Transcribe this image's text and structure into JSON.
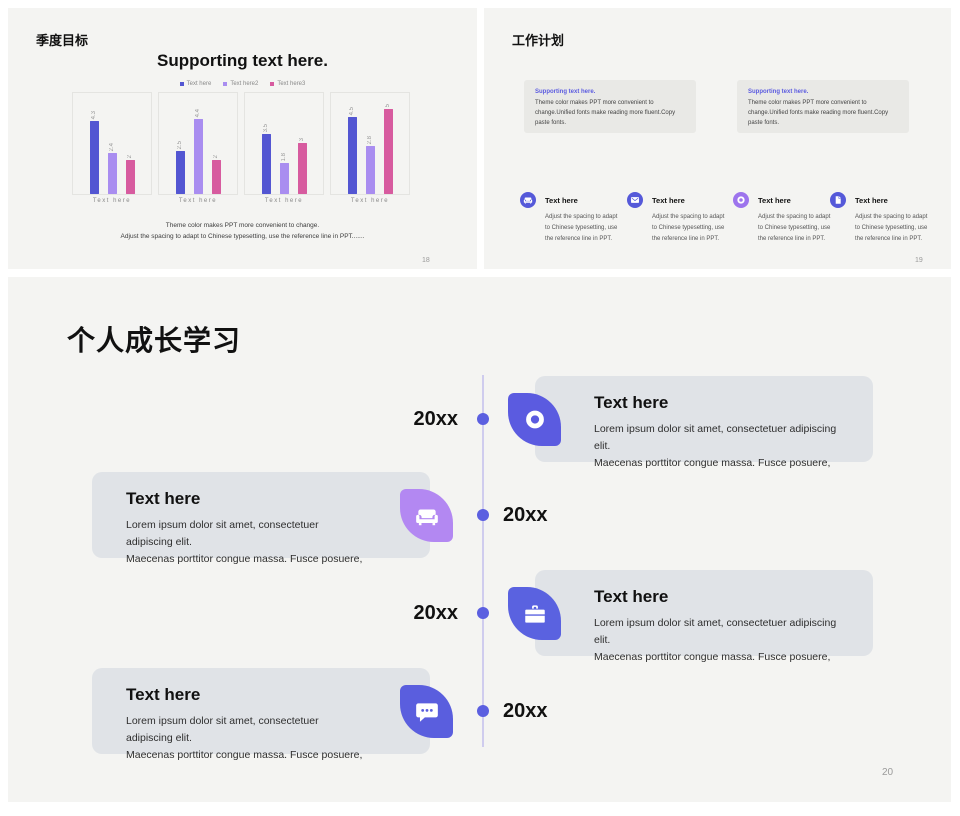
{
  "canvas": {
    "background": "#ffffff",
    "slide_background": "#f4f4f2",
    "accent": "#5b5fe0"
  },
  "slide_quarterly": {
    "title": "季度目标",
    "page_number": "18",
    "caption_line1": "Theme color makes PPT more convenient to change.",
    "caption_line2": "Adjust the spacing to adapt to Chinese typesetting, use the reference line in PPT.......",
    "chart_data": {
      "type": "bar",
      "title": "Supporting text here.",
      "categories": [
        "Text here",
        "Text here",
        "Text here",
        "Text here"
      ],
      "series": [
        {
          "name": "Text here",
          "color": "#5356d2",
          "values": [
            4.3,
            2.5,
            3.5,
            4.5
          ]
        },
        {
          "name": "Text here2",
          "color": "#a98df0",
          "values": [
            2.4,
            4.4,
            1.8,
            2.8
          ]
        },
        {
          "name": "Text here3",
          "color": "#d75b9f",
          "values": [
            2,
            2,
            3,
            5
          ]
        }
      ],
      "ylim": [
        0,
        5
      ],
      "grid": false,
      "legend_position": "top",
      "value_labels": true
    }
  },
  "slide_plan": {
    "title": "工作计划",
    "page_number": "19",
    "boxes": [
      {
        "heading": "Supporting text here.",
        "body": "Theme color makes PPT more convenient to change.Unified fonts make reading more fluent.Copy paste fonts."
      },
      {
        "heading": "Supporting text here.",
        "body": "Theme color makes PPT more convenient to change.Unified fonts make reading more fluent.Copy paste fonts."
      }
    ],
    "items": [
      {
        "label": "Text here",
        "description": "Adjust the spacing to adapt to Chinese typesetting, use the reference line in PPT.",
        "icon": "couch-icon",
        "color": "#5559d9"
      },
      {
        "label": "Text here",
        "description": "Adjust the spacing to adapt to Chinese typesetting, use the reference line in PPT.",
        "icon": "mail-icon",
        "color": "#5559d9"
      },
      {
        "label": "Text here",
        "description": "Adjust the spacing to adapt to Chinese typesetting, use the reference line in PPT.",
        "icon": "ring-icon",
        "color": "#9d74ed"
      },
      {
        "label": "Text here",
        "description": "Adjust the spacing to adapt to Chinese typesetting, use the reference line in PPT.",
        "icon": "document-icon",
        "color": "#5559d9"
      }
    ]
  },
  "slide_growth": {
    "title": "个人成长学习",
    "page_number": "20",
    "items": [
      {
        "year": "20xx",
        "side": "right",
        "title": "Text here",
        "body_line1": "Lorem ipsum dolor sit amet, consectetuer adipiscing elit.",
        "body_line2": "Maecenas porttitor congue massa. Fusce posuere,",
        "icon": "location-ring-icon",
        "color": "#5b5be0"
      },
      {
        "year": "20xx",
        "side": "left",
        "title": "Text here",
        "body_line1": "Lorem ipsum dolor sit amet, consectetuer adipiscing elit.",
        "body_line2": "Maecenas porttitor congue massa. Fusce posuere,",
        "icon": "couch-icon",
        "color": "#b388f2"
      },
      {
        "year": "20xx",
        "side": "right",
        "title": "Text here",
        "body_line1": "Lorem ipsum dolor sit amet, consectetuer adipiscing elit.",
        "body_line2": "Maecenas porttitor congue massa. Fusce posuere,",
        "icon": "briefcase-icon",
        "color": "#5a62e0"
      },
      {
        "year": "20xx",
        "side": "left",
        "title": "Text here",
        "body_line1": "Lorem ipsum dolor sit amet, consectetuer adipiscing elit.",
        "body_line2": "Maecenas porttitor congue massa. Fusce posuere,",
        "icon": "chat-icon",
        "color": "#5a5ede"
      }
    ]
  }
}
